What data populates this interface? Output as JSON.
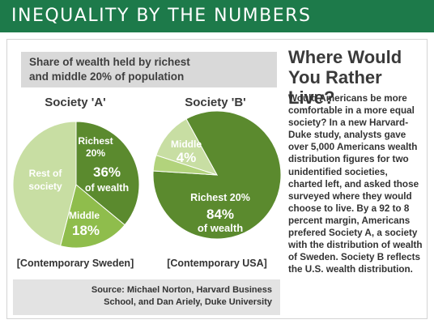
{
  "banner": {
    "title": "INEQUALITY BY THE NUMBERS"
  },
  "chart_subtitle_line1": "Share of wealth held by richest",
  "chart_subtitle_line2": "and middle 20% of population",
  "chart_data": [
    {
      "type": "pie",
      "title": "Society 'A'",
      "caption": "[Contemporary Sweden]",
      "slices": [
        {
          "name": "Richest 20%",
          "label_lines": [
            "Richest",
            "20%"
          ],
          "value_label": "36%",
          "value_suffix": "of wealth",
          "value": 36,
          "color": "#5b8a2e"
        },
        {
          "name": "Middle",
          "label_lines": [
            "Middle"
          ],
          "value_label": "18%",
          "value": 18,
          "color": "#8fbd4c"
        },
        {
          "name": "Rest of society",
          "label_lines": [
            "Rest of",
            "society"
          ],
          "value": 46,
          "color": "#c8dea3"
        }
      ]
    },
    {
      "type": "pie",
      "title": "Society 'B'",
      "caption": "[Contemporary USA]",
      "slices": [
        {
          "name": "Richest 20%",
          "label_lines": [
            "Richest 20%"
          ],
          "value_label": "84%",
          "value_suffix": "of wealth",
          "value": 84,
          "color": "#5b8a2e"
        },
        {
          "name": "Middle",
          "label_lines": [
            "Middle"
          ],
          "value_label": "4%",
          "value": 4,
          "color": "#b2d37c"
        },
        {
          "name": "Rest",
          "value": 12,
          "color": "#c8dea3"
        }
      ]
    }
  ],
  "source": {
    "line1": "Source: Michael Norton, Harvard Business",
    "line2": "School, and Dan Ariely, Duke University"
  },
  "article": {
    "title_line1": "Where Would",
    "title_line2": "You Rather Live?",
    "body_lines": [
      "Would Americans be more",
      "comfortable in a more equal",
      "society? In a new Harvard-",
      "Duke study, analysts gave",
      "over 5,000 Americans wealth",
      "distribution figures for two",
      "unidentified societies,",
      "charted left, and asked those",
      "surveyed where they would",
      "choose to live. By a 92 to 8",
      "percent margin, Americans",
      "prefered Society A, a society",
      "with the distribution of wealth",
      "of Sweden. Society B reflects",
      "the U.S. wealth distribution."
    ]
  }
}
